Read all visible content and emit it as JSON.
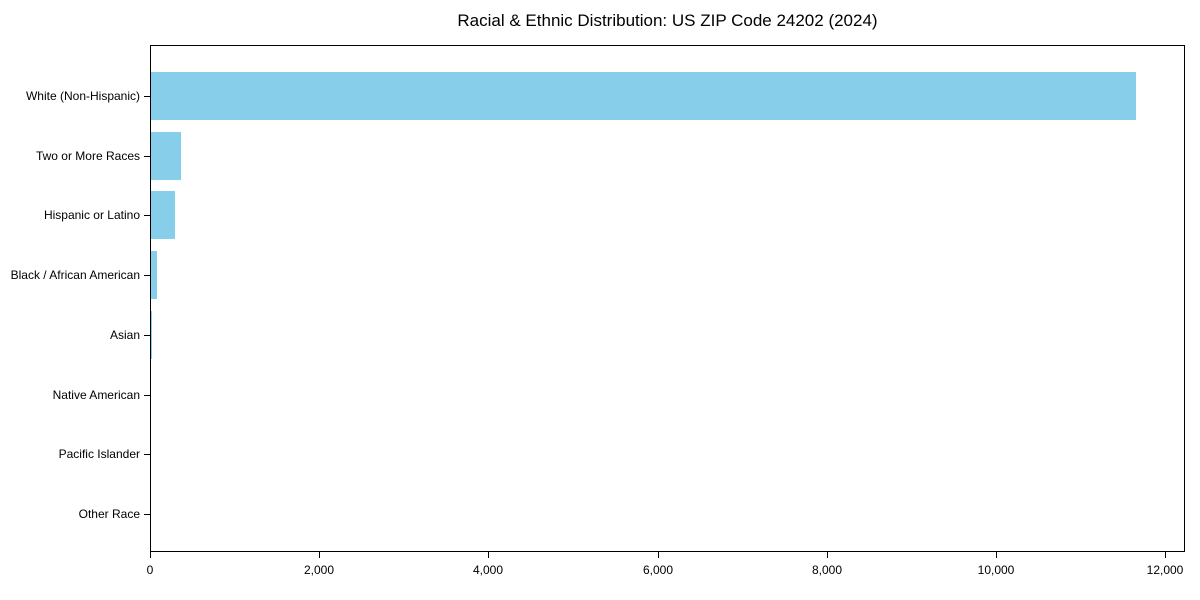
{
  "chart_data": {
    "type": "bar",
    "orientation": "horizontal",
    "title": "Racial & Ethnic Distribution: US ZIP Code 24202 (2024)",
    "categories": [
      "White (Non-Hispanic)",
      "Two or More Races",
      "Hispanic or Latino",
      "Black / African American",
      "Asian",
      "Native American",
      "Pacific Islander",
      "Other Race"
    ],
    "values": [
      11640,
      355,
      285,
      70,
      15,
      0,
      0,
      0
    ],
    "xlabel": "",
    "ylabel": "",
    "xlim": [
      0,
      12234
    ],
    "xticks": [
      0,
      2000,
      4000,
      6000,
      8000,
      10000,
      12000
    ],
    "xtick_labels": [
      "0",
      "2,000",
      "4,000",
      "6,000",
      "8,000",
      "10,000",
      "12,000"
    ],
    "bar_color": "#87CEEB",
    "frame_color": "#000000",
    "text_color": "#000000",
    "grid": false,
    "legend_visible": false
  }
}
